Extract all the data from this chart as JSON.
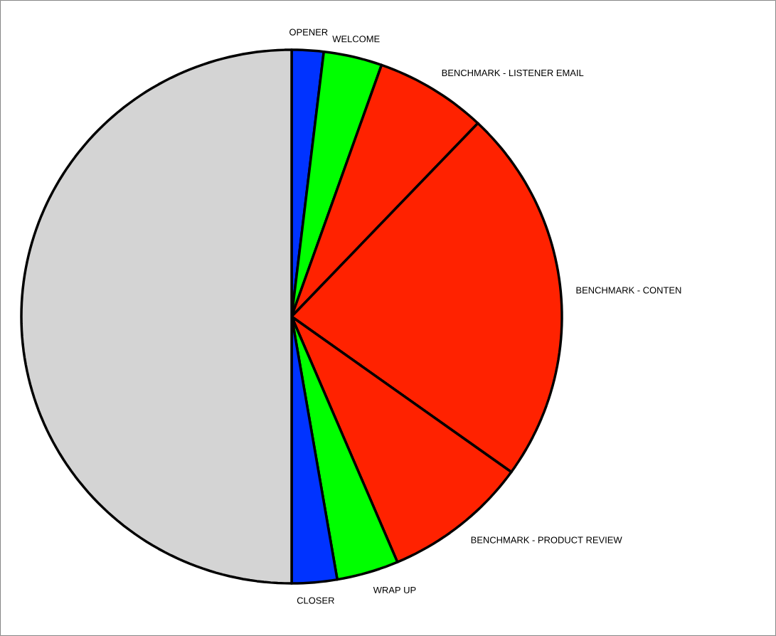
{
  "chart_data": {
    "type": "pie",
    "categories": [
      "OPENER",
      "WELCOME",
      "BENCHMARK - LISTENER EMAIL",
      "BENCHMARK - CONTEN",
      "BENCHMARK - PRODUCT REVIEW",
      "WRAP UP",
      "CLOSER",
      null
    ],
    "values": [
      1.9,
      3.5,
      6.7,
      22.8,
      8.7,
      3.7,
      2.7,
      50
    ],
    "colors": [
      "#0033ff",
      "#00ff00",
      "#ff2200",
      "#ff2200",
      "#ff2200",
      "#00ff00",
      "#0033ff",
      "#d4d4d4"
    ]
  }
}
